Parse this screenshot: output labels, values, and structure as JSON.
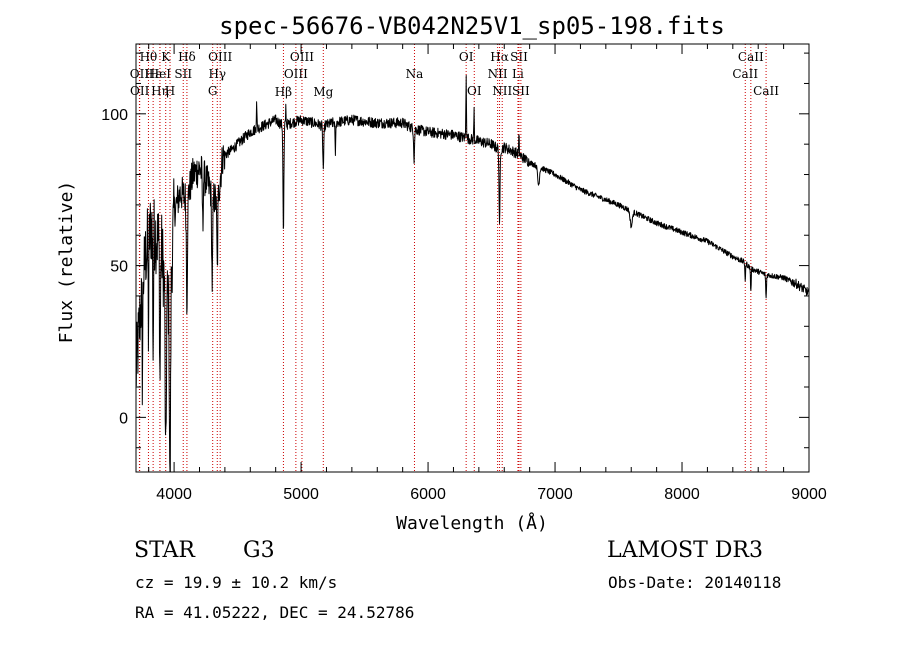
{
  "chart_data": {
    "type": "line",
    "title": "spec-56676-VB042N25V1_sp05-198.fits",
    "xlabel": "Wavelength (Å)",
    "ylabel": "Flux (relative)",
    "xlim": [
      3700,
      9000
    ],
    "ylim": [
      -18,
      123
    ],
    "xticks": [
      {
        "value": 4000,
        "label": "4000"
      },
      {
        "value": 5000,
        "label": "5000"
      },
      {
        "value": 6000,
        "label": "6000"
      },
      {
        "value": 7000,
        "label": "7000"
      },
      {
        "value": 8000,
        "label": "8000"
      },
      {
        "value": 9000,
        "label": "9000"
      }
    ],
    "yticks": [
      {
        "value": 0,
        "label": "0"
      },
      {
        "value": 50,
        "label": "50"
      },
      {
        "value": 100,
        "label": "100"
      }
    ],
    "line_color": "#000000",
    "marker_color": "#cc0000",
    "spectrum_anchors": [
      [
        3700,
        14
      ],
      [
        3740,
        38
      ],
      [
        3780,
        55
      ],
      [
        3820,
        63
      ],
      [
        3860,
        60
      ],
      [
        3900,
        56
      ],
      [
        3935,
        40
      ],
      [
        3968,
        38
      ],
      [
        4000,
        68
      ],
      [
        4050,
        74
      ],
      [
        4101,
        72
      ],
      [
        4150,
        80
      ],
      [
        4200,
        82
      ],
      [
        4250,
        78
      ],
      [
        4300,
        74
      ],
      [
        4340,
        70
      ],
      [
        4383,
        86
      ],
      [
        4450,
        88
      ],
      [
        4500,
        90
      ],
      [
        4600,
        94
      ],
      [
        4700,
        96
      ],
      [
        4800,
        98
      ],
      [
        4861,
        96
      ],
      [
        4920,
        97
      ],
      [
        5000,
        98
      ],
      [
        5100,
        97
      ],
      [
        5175,
        96
      ],
      [
        5250,
        97
      ],
      [
        5400,
        98
      ],
      [
        5600,
        97
      ],
      [
        5800,
        97
      ],
      [
        5890,
        95
      ],
      [
        6000,
        94
      ],
      [
        6200,
        93
      ],
      [
        6300,
        92
      ],
      [
        6400,
        91
      ],
      [
        6500,
        90
      ],
      [
        6563,
        88
      ],
      [
        6600,
        89
      ],
      [
        6700,
        87
      ],
      [
        6800,
        84
      ],
      [
        7000,
        80
      ],
      [
        7200,
        75
      ],
      [
        7500,
        70
      ],
      [
        7800,
        64
      ],
      [
        8000,
        61
      ],
      [
        8200,
        58
      ],
      [
        8400,
        53
      ],
      [
        8498,
        51
      ],
      [
        8542,
        49
      ],
      [
        8662,
        47
      ],
      [
        8800,
        46
      ],
      [
        8900,
        44
      ],
      [
        9000,
        41
      ]
    ],
    "dips": [
      {
        "wavelength": 3750,
        "depth": 28,
        "width": 4
      },
      {
        "wavelength": 3798,
        "depth": 30,
        "width": 4
      },
      {
        "wavelength": 3835,
        "depth": 40,
        "width": 4
      },
      {
        "wavelength": 3889,
        "depth": 45,
        "width": 5
      },
      {
        "wavelength": 3934,
        "depth": 58,
        "width": 6
      },
      {
        "wavelength": 3968,
        "depth": 66,
        "width": 6
      },
      {
        "wavelength": 4101,
        "depth": 34,
        "width": 6
      },
      {
        "wavelength": 4226,
        "depth": 18,
        "width": 4
      },
      {
        "wavelength": 4300,
        "depth": 30,
        "width": 6
      },
      {
        "wavelength": 4340,
        "depth": 22,
        "width": 5
      },
      {
        "wavelength": 4861,
        "depth": 36,
        "width": 5
      },
      {
        "wavelength": 5175,
        "depth": 14,
        "width": 6
      },
      {
        "wavelength": 5270,
        "depth": 10,
        "width": 4
      },
      {
        "wavelength": 5890,
        "depth": 10,
        "width": 5
      },
      {
        "wavelength": 6563,
        "depth": 26,
        "width": 5
      },
      {
        "wavelength": 6870,
        "depth": 6,
        "width": 10
      },
      {
        "wavelength": 7600,
        "depth": 5,
        "width": 12
      },
      {
        "wavelength": 8498,
        "depth": 6,
        "width": 4
      },
      {
        "wavelength": 8542,
        "depth": 8,
        "width": 4
      },
      {
        "wavelength": 8662,
        "depth": 8,
        "width": 4
      }
    ],
    "spikes": [
      {
        "wavelength": 4650,
        "height": 10
      },
      {
        "wavelength": 4880,
        "height": 6
      },
      {
        "wavelength": 6300,
        "height": 22
      },
      {
        "wavelength": 6362,
        "height": 10
      },
      {
        "wavelength": 6716,
        "height": 6
      }
    ],
    "line_markers": [
      {
        "label": "Hθ",
        "wavelength": 3798,
        "row": 1
      },
      {
        "label": "OII",
        "wavelength": 3727,
        "row": 2
      },
      {
        "label": "OII",
        "wavelength": 3729,
        "row": 3
      },
      {
        "label": "Hε",
        "wavelength": 3835,
        "row": 2
      },
      {
        "label": "Hη",
        "wavelength": 3889,
        "row": 3
      },
      {
        "label": "K",
        "wavelength": 3934,
        "row": 1
      },
      {
        "label": "HeI",
        "wavelength": 3888,
        "row": 2
      },
      {
        "label": "H",
        "wavelength": 3968,
        "row": 3
      },
      {
        "label": "SII",
        "wavelength": 4072,
        "row": 2
      },
      {
        "label": "Hδ",
        "wavelength": 4101,
        "row": 1
      },
      {
        "label": "OIII",
        "wavelength": 4363,
        "row": 1
      },
      {
        "label": "Hγ",
        "wavelength": 4340,
        "row": 2
      },
      {
        "label": "G",
        "wavelength": 4304,
        "row": 3
      },
      {
        "label": "Hβ",
        "wavelength": 4861,
        "row": 4
      },
      {
        "label": "OIII",
        "wavelength": 5007,
        "row": 1
      },
      {
        "label": "OIII",
        "wavelength": 4959,
        "row": 2
      },
      {
        "label": "Mg",
        "wavelength": 5175,
        "row": 4
      },
      {
        "label": "Na",
        "wavelength": 5893,
        "row": 2
      },
      {
        "label": "OI",
        "wavelength": 6300,
        "row": 1
      },
      {
        "label": "OI",
        "wavelength": 6364,
        "row": 3
      },
      {
        "label": "Hα",
        "wavelength": 6563,
        "row": 1
      },
      {
        "label": "NII",
        "wavelength": 6548,
        "row": 2
      },
      {
        "label": "NII",
        "wavelength": 6584,
        "row": 3
      },
      {
        "label": "SII",
        "wavelength": 6716,
        "row": 1
      },
      {
        "label": "Li",
        "wavelength": 6708,
        "row": 2
      },
      {
        "label": "SII",
        "wavelength": 6731,
        "row": 3
      },
      {
        "label": "CaII",
        "wavelength": 8542,
        "row": 1
      },
      {
        "label": "CaII",
        "wavelength": 8498,
        "row": 2
      },
      {
        "label": "CaII",
        "wavelength": 8662,
        "row": 3
      }
    ]
  },
  "footer": {
    "class_label": "STAR",
    "subclass": "G3",
    "survey": "LAMOST DR3",
    "redshift": "cz = 19.9 ± 10.2 km/s",
    "obs_date": "Obs-Date: 20140118",
    "coords": "RA =  41.05222, DEC =  24.52786"
  }
}
